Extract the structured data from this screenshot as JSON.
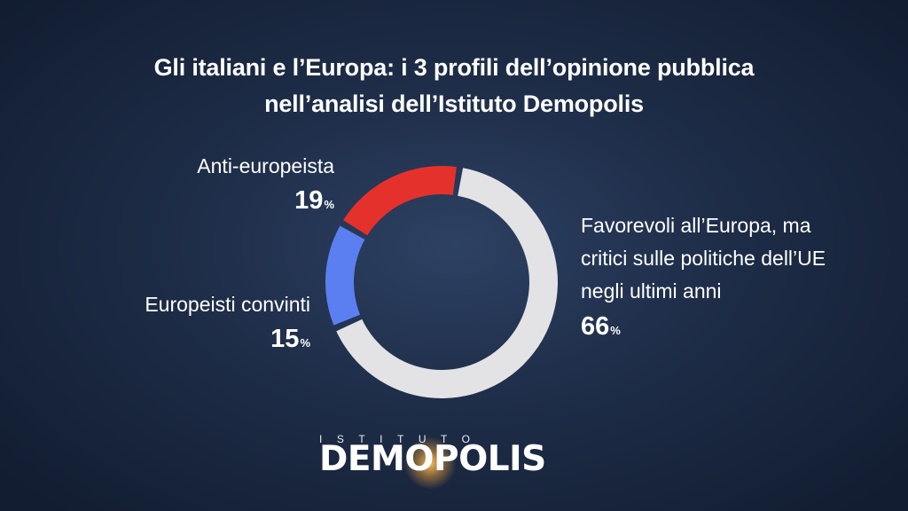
{
  "title": {
    "line1": "Gli italiani e l’Europa: i 3 profili dell’opinione pubblica",
    "line2": "nell’analisi dell’Istituto Demopolis"
  },
  "colors": {
    "anti": "#e5312c",
    "europeisti": "#5b7ff0",
    "favorevoli": "#e3e3e6"
  },
  "segments": {
    "anti": {
      "label": "Anti-europeista",
      "value": "19",
      "unit": "%"
    },
    "europeisti": {
      "label": "Europeisti convinti",
      "value": "15",
      "unit": "%"
    },
    "favorevoli": {
      "label_line1": "Favorevoli all’Europa, ma",
      "label_line2": "critici sulle politiche dell’UE",
      "label_line3": "negli ultimi anni",
      "value": "66",
      "unit": "%"
    }
  },
  "logo": {
    "small": "ISTITUTO",
    "big_left": "DEM",
    "big_o": "O",
    "big_right": "POLIS"
  },
  "chart_data": {
    "type": "pie",
    "donut": true,
    "title": "Gli italiani e l’Europa: i 3 profili dell’opinione pubblica nell’analisi dell’Istituto Demopolis",
    "categories": [
      "Favorevoli all’Europa, ma critici sulle politiche dell’UE negli ultimi anni",
      "Europeisti convinti",
      "Anti-europeista"
    ],
    "values": [
      66,
      15,
      19
    ],
    "unit": "%",
    "colors": [
      "#e3e3e6",
      "#5b7ff0",
      "#e5312c"
    ]
  }
}
